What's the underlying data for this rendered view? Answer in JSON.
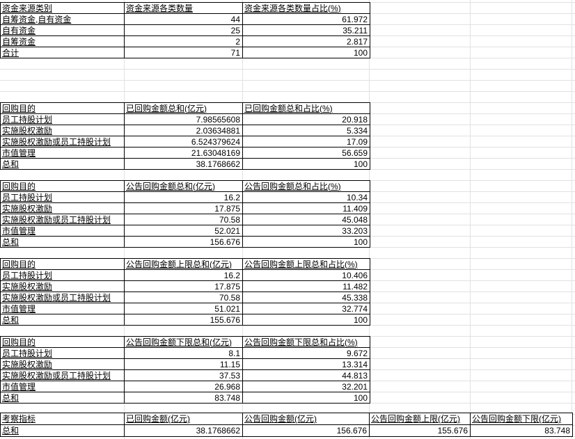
{
  "sheet": {
    "background": "#ffffff",
    "gridline_color": "#e1e1e1",
    "cell_border_color": "#000000",
    "text_color": "#000000"
  },
  "tables": [
    {
      "headers": [
        "资金来源类别",
        "资金来源各类数量",
        "资金来源各类数量占比(%)"
      ],
      "rows": [
        [
          "自筹资金,自有资金",
          "44",
          "61.972"
        ],
        [
          "自有资金",
          "25",
          "35.211"
        ],
        [
          "自筹资金",
          "2",
          "2.817"
        ],
        [
          "合计",
          "71",
          "100"
        ]
      ]
    },
    {
      "headers": [
        "回购目的",
        "已回购金额总和(亿元)",
        "已回购金额总和占比(%)"
      ],
      "rows": [
        [
          "员工持股计划",
          "7.98565608",
          "20.918"
        ],
        [
          "实施股权激励",
          "2.03634881",
          "5.334"
        ],
        [
          "实施股权激励或员工持股计划",
          "6.524379624",
          "17.09"
        ],
        [
          "市值管理",
          "21.63048169",
          "56.659"
        ],
        [
          "总和",
          "38.1768662",
          "100"
        ]
      ]
    },
    {
      "headers": [
        "回购目的",
        "公告回购金额总和(亿元)",
        "公告回购金额总和占比(%)"
      ],
      "rows": [
        [
          "员工持股计划",
          "16.2",
          "10.34"
        ],
        [
          "实施股权激励",
          "17.875",
          "11.409"
        ],
        [
          "实施股权激励或员工持股计划",
          "70.58",
          "45.048"
        ],
        [
          "市值管理",
          "52.021",
          "33.203"
        ],
        [
          "总和",
          "156.676",
          "100"
        ]
      ]
    },
    {
      "headers": [
        "回购目的",
        "公告回购金额上限总和(亿元)",
        "公告回购金额上限总和占比(%)"
      ],
      "rows": [
        [
          "员工持股计划",
          "16.2",
          "10.406"
        ],
        [
          "实施股权激励",
          "17.875",
          "11.482"
        ],
        [
          "实施股权激励或员工持股计划",
          "70.58",
          "45.338"
        ],
        [
          "市值管理",
          "51.021",
          "32.774"
        ],
        [
          "总和",
          "155.676",
          "100"
        ]
      ]
    },
    {
      "headers": [
        "回购目的",
        "公告回购金额下限总和(亿元)",
        "公告回购金额下限总和占比(%)"
      ],
      "rows": [
        [
          "员工持股计划",
          "8.1",
          "9.672"
        ],
        [
          "实施股权激励",
          "11.15",
          "13.314"
        ],
        [
          "实施股权激励或员工持股计划",
          "37.53",
          "44.813"
        ],
        [
          "市值管理",
          "26.968",
          "32.201"
        ],
        [
          "总和",
          "83.748",
          "100"
        ]
      ]
    },
    {
      "headers": [
        "考察指标",
        "已回购金额(亿元)",
        "公告回购金额(亿元)",
        "公告回购金额上限(亿元)",
        "公告回购金额下限(亿元)"
      ],
      "rows": [
        [
          "总和",
          "38.1768662",
          "156.676",
          "155.676",
          "83.748"
        ]
      ]
    }
  ]
}
